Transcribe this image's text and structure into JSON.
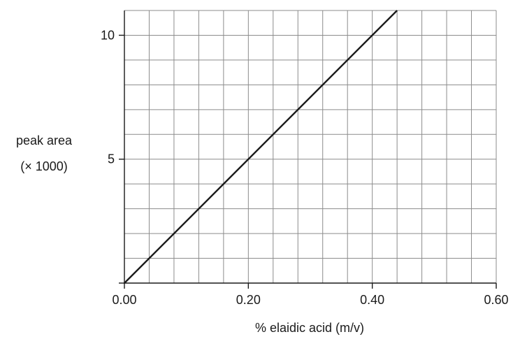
{
  "chart_data": {
    "type": "line",
    "title": "",
    "xlabel": "% elaidic acid (m/v)",
    "ylabel_lines": [
      "peak area",
      "(× 1000)"
    ],
    "xlim": [
      0,
      0.6
    ],
    "ylim": [
      0,
      11
    ],
    "x_ticks": [
      0.0,
      0.2,
      0.4,
      0.6
    ],
    "x_tick_labels": [
      "0.00",
      "0.20",
      "0.40",
      "0.60"
    ],
    "y_ticks": [
      5,
      10
    ],
    "y_tick_labels": [
      "5",
      "10"
    ],
    "grid": true,
    "x_minor_step": 0.04,
    "y_minor_step": 1,
    "series": [
      {
        "x": [
          0.0,
          0.44
        ],
        "y": [
          0,
          11
        ],
        "color": "#1a1a1a"
      }
    ]
  }
}
